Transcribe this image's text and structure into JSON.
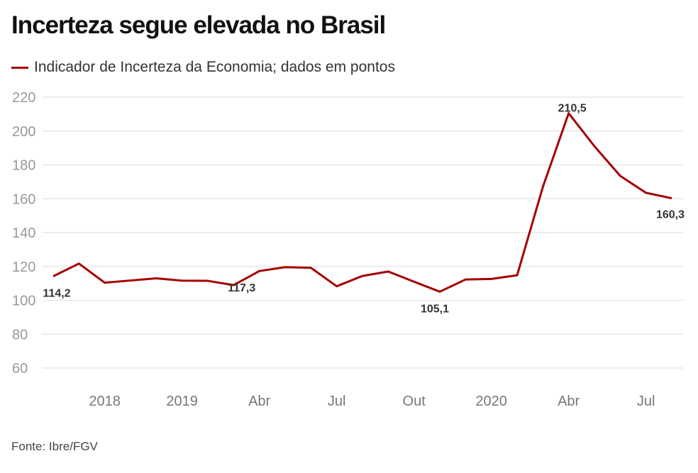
{
  "chart_data": {
    "type": "line",
    "title": "Incerteza segue elevada no Brasil",
    "source": "Fonte: Ibre/FGV",
    "ylim": [
      60,
      220
    ],
    "yticks": [
      60,
      80,
      100,
      120,
      140,
      160,
      180,
      200,
      220
    ],
    "grid": true,
    "legend_placement": "top-left",
    "line_color": "#a50000",
    "categories": [
      "",
      "",
      "2018",
      "",
      "",
      "2019",
      "",
      "",
      "Abr",
      "",
      "",
      "Jul",
      "",
      "",
      "Out",
      "",
      "",
      "2020",
      "",
      "",
      "Abr",
      "",
      "",
      "Jul",
      ""
    ],
    "series": [
      {
        "name": "Indicador de Incerteza da Economia; dados em pontos",
        "values": [
          114.2,
          121.7,
          110.4,
          111.7,
          113.0,
          111.6,
          111.5,
          109.0,
          117.3,
          119.6,
          119.2,
          108.3,
          114.4,
          117.0,
          111.0,
          105.1,
          112.3,
          112.6,
          114.8,
          167.0,
          210.5,
          191.0,
          173.5,
          163.5,
          160.3
        ]
      }
    ],
    "data_labels": [
      {
        "index": 0,
        "text": "114,2"
      },
      {
        "index": 8,
        "text": "117,3"
      },
      {
        "index": 15,
        "text": "105,1"
      },
      {
        "index": 20,
        "text": "210,5"
      },
      {
        "index": 24,
        "text": "160,3"
      }
    ]
  }
}
